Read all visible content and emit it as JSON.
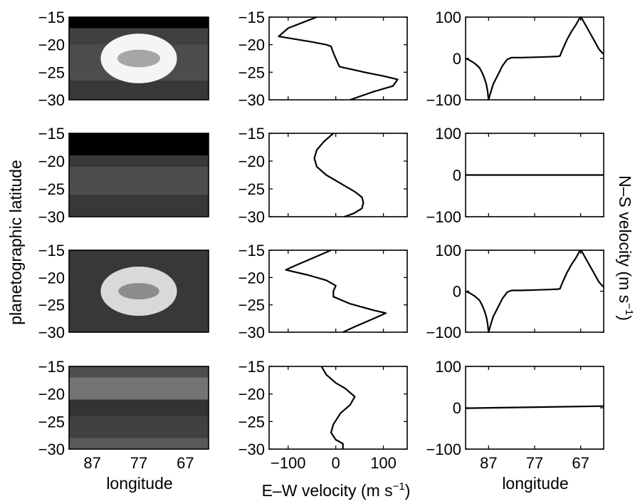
{
  "figure": {
    "row_label": "planetographic latitude",
    "right_label": "N–S velocity (m s",
    "right_label_exp": "−1",
    "right_label_end": ")",
    "xlabel_left": "longitude",
    "xlabel_mid": "E–W velocity (m s",
    "xlabel_mid_exp": "−1",
    "xlabel_mid_end": ")",
    "xlabel_right": "longitude"
  },
  "chart_data": [
    {
      "type": "heatmap",
      "panel": "row1-image",
      "xlim": [
        92,
        62
      ],
      "ylim": [
        -30,
        -15
      ],
      "bands": [
        {
          "from": -15,
          "to": -17,
          "gray": 0.0
        },
        {
          "from": -17,
          "to": -20,
          "gray": 0.25
        },
        {
          "from": -20,
          "to": -26.5,
          "gray": 0.3
        },
        {
          "from": -26.5,
          "to": -30,
          "gray": 0.22
        }
      ],
      "vortex": {
        "center_lon": 77,
        "center_lat": -22.5,
        "outer": {
          "rx": 8.2,
          "ry": 4.5,
          "gray": 0.96
        },
        "inner": {
          "rx": 4.6,
          "ry": 1.6,
          "gray": 0.65
        }
      },
      "xticks": [
        87,
        77,
        67
      ],
      "yticks": [
        -15,
        -20,
        -25,
        -30
      ]
    },
    {
      "type": "line",
      "panel": "row1-ew",
      "xlim": [
        -140,
        150
      ],
      "ylim": [
        -30,
        -15
      ],
      "xticks": [
        -100,
        0,
        100
      ],
      "yticks": [
        -15,
        -20,
        -25,
        -30
      ],
      "x": [
        -40,
        -70,
        -100,
        -120,
        -50,
        -20,
        -10,
        -5,
        0,
        5,
        8,
        60,
        100,
        130,
        120,
        80,
        30
      ],
      "y": [
        -15,
        -16,
        -17,
        -18.5,
        -19.5,
        -20,
        -20.3,
        -21.5,
        -22.5,
        -23.5,
        -24,
        -25,
        -25.7,
        -26.3,
        -27.5,
        -28.5,
        -30
      ]
    },
    {
      "type": "line",
      "panel": "row1-ns",
      "xlim": [
        92,
        62
      ],
      "ylim": [
        -100,
        100
      ],
      "xticks": [
        87,
        77,
        67
      ],
      "yticks": [
        100,
        0,
        -100
      ],
      "x": [
        92,
        91,
        90,
        89,
        88.5,
        88,
        87.5,
        87.2,
        87,
        86.5,
        86,
        85,
        84,
        83,
        82.5,
        82,
        80,
        77,
        74,
        72,
        71.5,
        71,
        70,
        69,
        68,
        67.5,
        67.2,
        67,
        66.8,
        66.5,
        66,
        65,
        64,
        63,
        62
      ],
      "y": [
        0,
        -5,
        -12,
        -22,
        -32,
        -45,
        -62,
        -80,
        -100,
        -80,
        -62,
        -40,
        -18,
        -3,
        0,
        2,
        2,
        3,
        4,
        5,
        6,
        20,
        45,
        65,
        82,
        92,
        98,
        100,
        98,
        92,
        82,
        62,
        42,
        22,
        10
      ]
    },
    {
      "type": "heatmap",
      "panel": "row2-image",
      "xlim": [
        92,
        62
      ],
      "ylim": [
        -30,
        -15
      ],
      "bands": [
        {
          "from": -15,
          "to": -19,
          "gray": 0.0
        },
        {
          "from": -19,
          "to": -21,
          "gray": 0.22
        },
        {
          "from": -21,
          "to": -26,
          "gray": 0.3
        },
        {
          "from": -26,
          "to": -30,
          "gray": 0.22
        }
      ],
      "xticks": [
        87,
        77,
        67
      ],
      "yticks": [
        -15,
        -20,
        -25,
        -30
      ]
    },
    {
      "type": "line",
      "panel": "row2-ew",
      "xlim": [
        -140,
        150
      ],
      "ylim": [
        -30,
        -15
      ],
      "xticks": [
        -100,
        0,
        100
      ],
      "yticks": [
        -15,
        -20,
        -25,
        -30
      ],
      "x": [
        -5,
        -25,
        -40,
        -45,
        -40,
        -20,
        10,
        40,
        55,
        58,
        55,
        38,
        18
      ],
      "y": [
        -15,
        -16.5,
        -18,
        -19.5,
        -21,
        -22.5,
        -24,
        -25.5,
        -26.5,
        -27.5,
        -28.5,
        -29.4,
        -30
      ]
    },
    {
      "type": "line",
      "panel": "row2-ns",
      "xlim": [
        92,
        62
      ],
      "ylim": [
        -100,
        100
      ],
      "xticks": [
        87,
        77,
        67
      ],
      "yticks": [
        100,
        0,
        -100
      ],
      "x": [
        92,
        62
      ],
      "y": [
        0,
        0
      ]
    },
    {
      "type": "heatmap",
      "panel": "row3-image",
      "xlim": [
        92,
        62
      ],
      "ylim": [
        -30,
        -15
      ],
      "bands": [
        {
          "from": -15,
          "to": -30,
          "gray": 0.22
        }
      ],
      "vortex": {
        "center_lon": 77,
        "center_lat": -22.5,
        "outer": {
          "rx": 8.2,
          "ry": 4.5,
          "gray": 0.85
        },
        "inner": {
          "rx": 4.4,
          "ry": 1.5,
          "gray": 0.55
        }
      },
      "xticks": [
        87,
        77,
        67
      ],
      "yticks": [
        -15,
        -20,
        -25,
        -30
      ]
    },
    {
      "type": "line",
      "panel": "row3-ew",
      "xlim": [
        -140,
        150
      ],
      "ylim": [
        -30,
        -15
      ],
      "xticks": [
        -100,
        0,
        100
      ],
      "yticks": [
        -15,
        -20,
        -25,
        -30
      ],
      "x": [
        -10,
        -50,
        -90,
        -105,
        -60,
        -20,
        0,
        -5,
        -5,
        30,
        80,
        105,
        80,
        40,
        15
      ],
      "y": [
        -15,
        -16.5,
        -18,
        -18.6,
        -19.5,
        -20.5,
        -21.5,
        -22.5,
        -23.5,
        -24.8,
        -26,
        -26.5,
        -27.5,
        -29,
        -30
      ]
    },
    {
      "type": "line",
      "panel": "row3-ns",
      "xlim": [
        92,
        62
      ],
      "ylim": [
        -100,
        100
      ],
      "xticks": [
        87,
        77,
        67
      ],
      "yticks": [
        100,
        0,
        -100
      ],
      "x": [
        92,
        91,
        90,
        89,
        88.5,
        88,
        87.5,
        87.2,
        87,
        86.5,
        86,
        85,
        84,
        83,
        82.5,
        82,
        80,
        77,
        74,
        72,
        71.5,
        71,
        70,
        69,
        68,
        67.5,
        67.2,
        67,
        66.8,
        66.5,
        66,
        65,
        64,
        63,
        62
      ],
      "y": [
        0,
        -5,
        -12,
        -22,
        -32,
        -45,
        -62,
        -80,
        -100,
        -80,
        -62,
        -40,
        -18,
        -3,
        0,
        2,
        2,
        3,
        4,
        5,
        6,
        20,
        45,
        65,
        82,
        92,
        98,
        100,
        98,
        92,
        82,
        62,
        42,
        22,
        10
      ]
    },
    {
      "type": "heatmap",
      "panel": "row4-image",
      "xlim": [
        92,
        62
      ],
      "ylim": [
        -30,
        -15
      ],
      "bands": [
        {
          "from": -15,
          "to": -17,
          "gray": 0.3
        },
        {
          "from": -17,
          "to": -21,
          "gray": 0.45
        },
        {
          "from": -21,
          "to": -24,
          "gray": 0.2
        },
        {
          "from": -24,
          "to": -28,
          "gray": 0.25
        },
        {
          "from": -28,
          "to": -30,
          "gray": 0.35
        }
      ],
      "xticks": [
        87,
        77,
        67
      ],
      "yticks": [
        -15,
        -20,
        -25,
        -30
      ]
    },
    {
      "type": "line",
      "panel": "row4-ew",
      "xlim": [
        -140,
        150
      ],
      "ylim": [
        -30,
        -15
      ],
      "xticks": [
        -100,
        0,
        100
      ],
      "yticks": [
        -15,
        -20,
        -25,
        -30
      ],
      "x": [
        -30,
        -20,
        0,
        20,
        40,
        30,
        10,
        -5,
        -10,
        0,
        15,
        15
      ],
      "y": [
        -15,
        -16.5,
        -18,
        -19,
        -20.5,
        -22,
        -23.5,
        -25.5,
        -27,
        -28.3,
        -29,
        -30
      ]
    },
    {
      "type": "line",
      "panel": "row4-ns",
      "xlim": [
        92,
        62
      ],
      "ylim": [
        -100,
        100
      ],
      "xticks": [
        87,
        77,
        67
      ],
      "yticks": [
        100,
        0,
        -100
      ],
      "x": [
        92,
        62
      ],
      "y": [
        -1,
        4
      ]
    }
  ]
}
